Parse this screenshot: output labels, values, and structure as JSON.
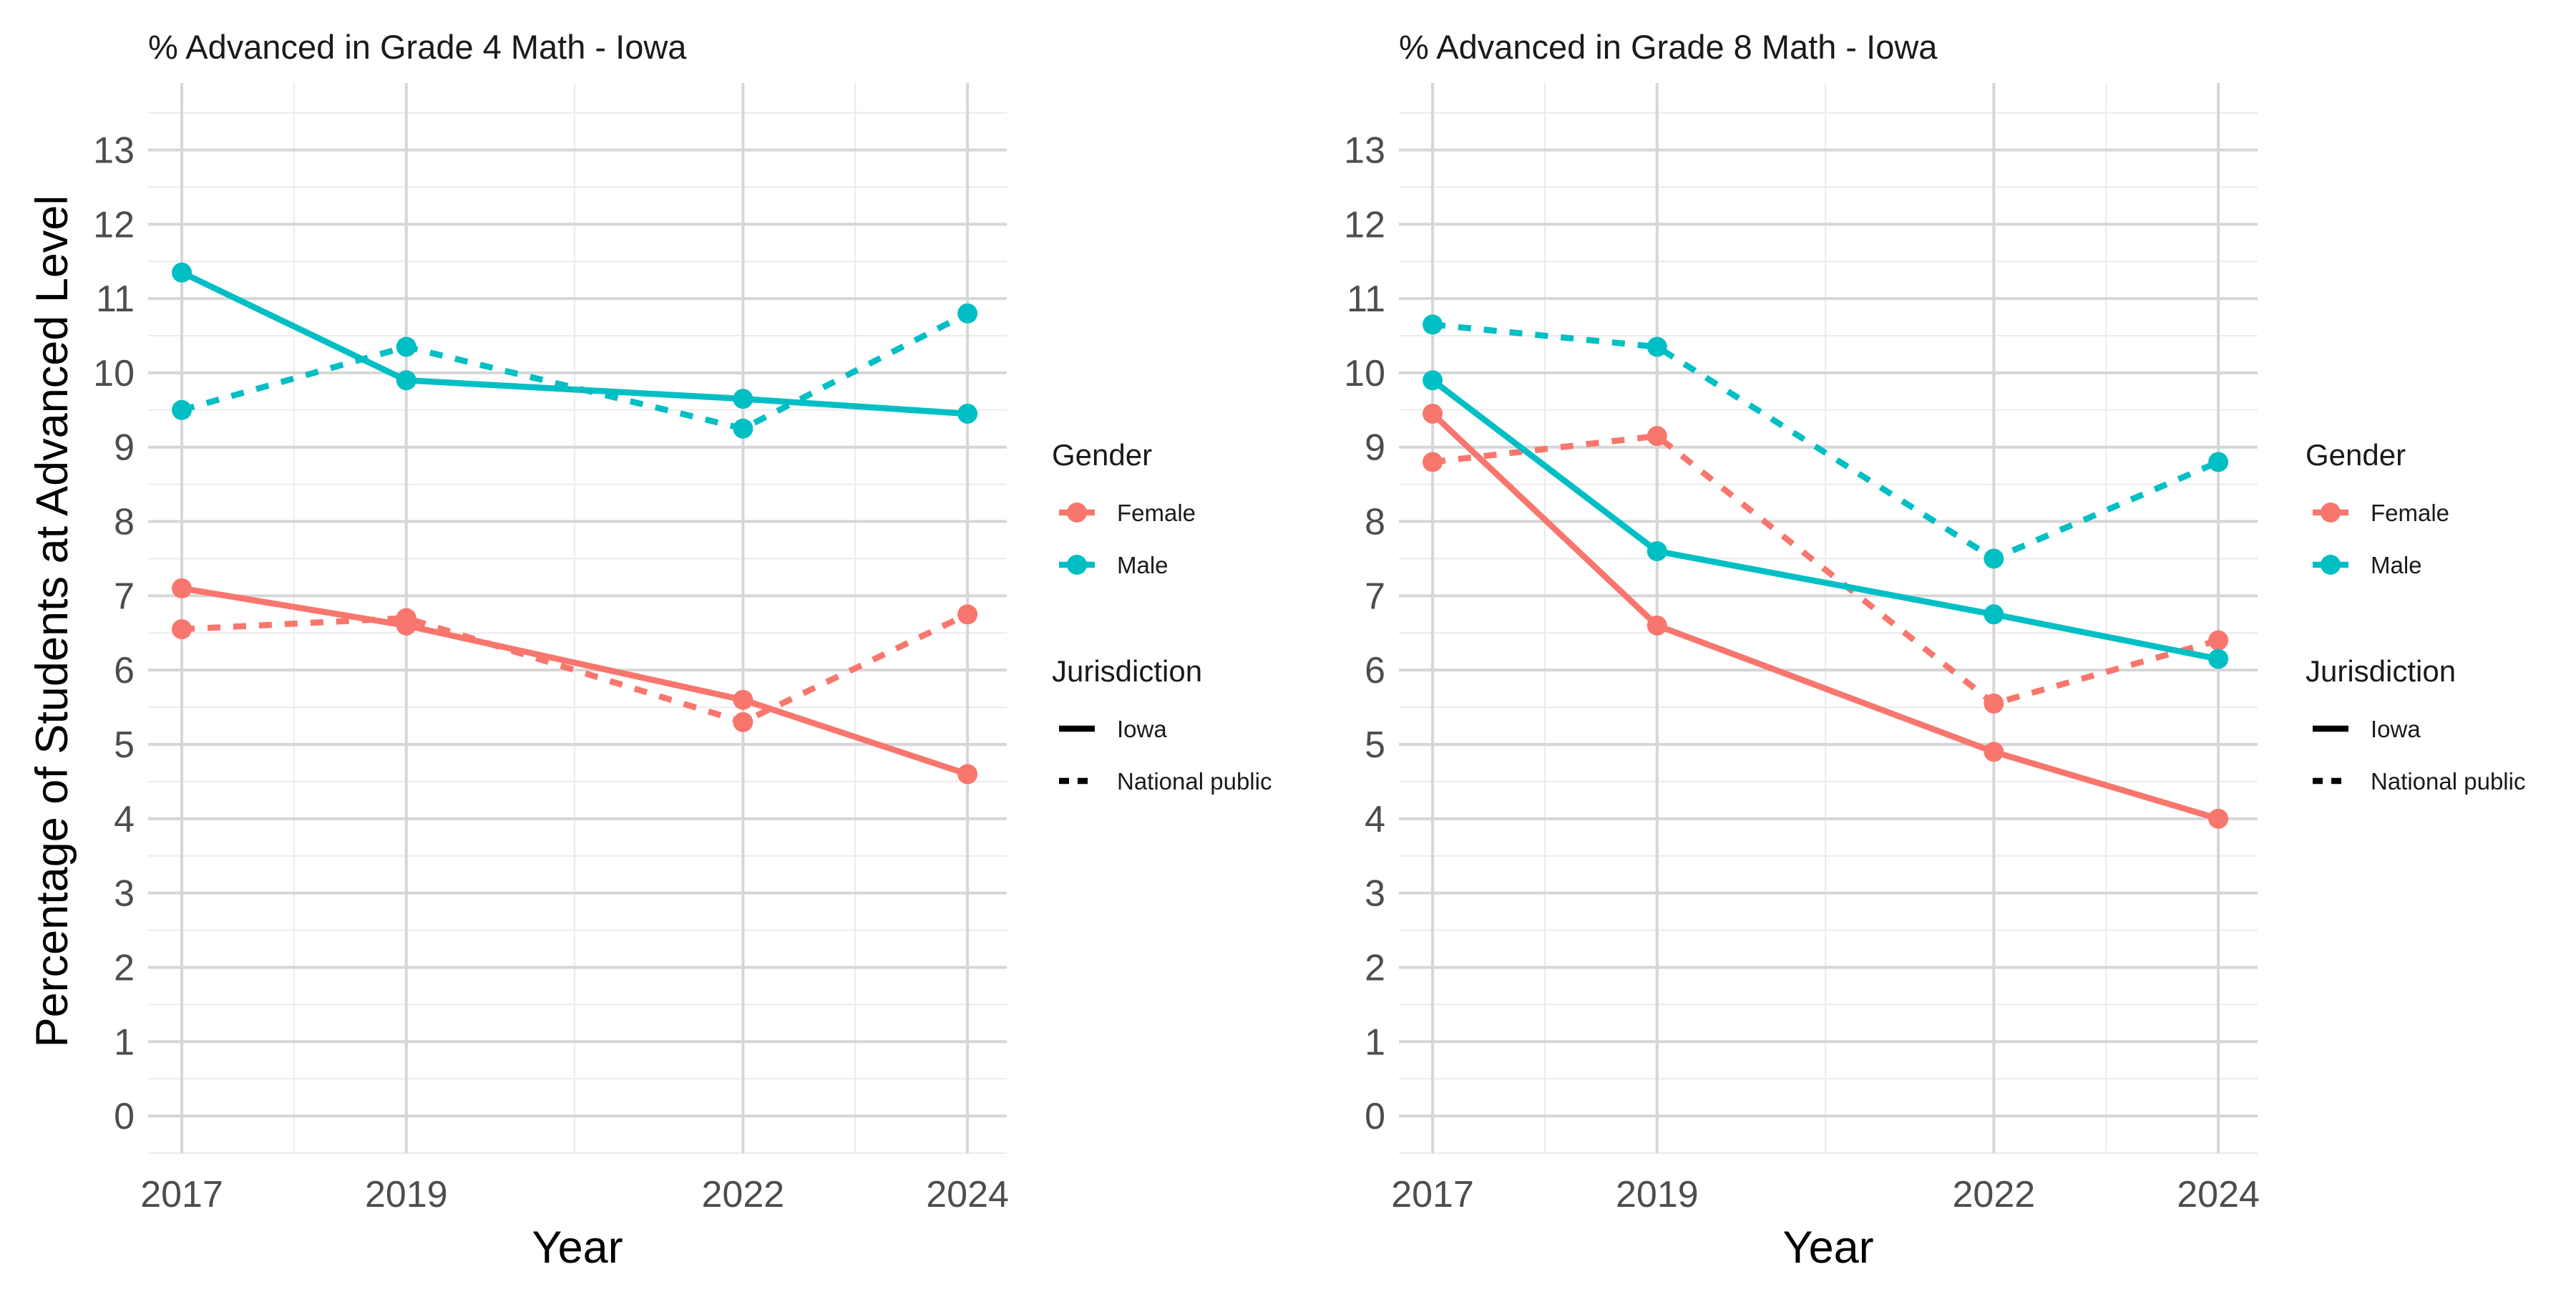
{
  "y_axis_label": "Percentage of Students at Advanced Level",
  "colors": {
    "Female": "#F8766D",
    "Male": "#00BFC4"
  },
  "chart_data": [
    {
      "type": "line",
      "title": "% Advanced in Grade 4 Math - Iowa",
      "xlabel": "Year",
      "x_ticks": [
        2017,
        2019,
        2022,
        2024
      ],
      "y_ticks": [
        0,
        1,
        2,
        3,
        4,
        5,
        6,
        7,
        8,
        9,
        10,
        11,
        12,
        13
      ],
      "ylim": [
        -0.5,
        13.9
      ],
      "xlim": [
        2016.7,
        2024.35
      ],
      "grid": true,
      "legend": {
        "position": "right",
        "gender_title": "Gender",
        "gender_items": [
          "Female",
          "Male"
        ],
        "jurisdiction_title": "Jurisdiction",
        "jurisdiction_items": [
          "Iowa",
          "National public"
        ]
      },
      "series": [
        {
          "gender": "Female",
          "jurisdiction": "Iowa",
          "x": [
            2017,
            2019,
            2022,
            2024
          ],
          "y": [
            7.1,
            6.6,
            5.6,
            4.6
          ]
        },
        {
          "gender": "Female",
          "jurisdiction": "National public",
          "x": [
            2017,
            2019,
            2022,
            2024
          ],
          "y": [
            6.55,
            6.7,
            5.3,
            6.75
          ]
        },
        {
          "gender": "Male",
          "jurisdiction": "Iowa",
          "x": [
            2017,
            2019,
            2022,
            2024
          ],
          "y": [
            11.35,
            9.9,
            9.65,
            9.45
          ]
        },
        {
          "gender": "Male",
          "jurisdiction": "National public",
          "x": [
            2017,
            2019,
            2022,
            2024
          ],
          "y": [
            9.5,
            10.35,
            9.25,
            10.8
          ]
        }
      ]
    },
    {
      "type": "line",
      "title": "% Advanced in Grade 8 Math - Iowa",
      "xlabel": "Year",
      "x_ticks": [
        2017,
        2019,
        2022,
        2024
      ],
      "y_ticks": [
        0,
        1,
        2,
        3,
        4,
        5,
        6,
        7,
        8,
        9,
        10,
        11,
        12,
        13
      ],
      "ylim": [
        -0.5,
        13.9
      ],
      "xlim": [
        2016.7,
        2024.35
      ],
      "grid": true,
      "legend": {
        "position": "right",
        "gender_title": "Gender",
        "gender_items": [
          "Female",
          "Male"
        ],
        "jurisdiction_title": "Jurisdiction",
        "jurisdiction_items": [
          "Iowa",
          "National public"
        ]
      },
      "series": [
        {
          "gender": "Female",
          "jurisdiction": "Iowa",
          "x": [
            2017,
            2019,
            2022,
            2024
          ],
          "y": [
            9.45,
            6.6,
            4.9,
            4.0
          ]
        },
        {
          "gender": "Female",
          "jurisdiction": "National public",
          "x": [
            2017,
            2019,
            2022,
            2024
          ],
          "y": [
            8.8,
            9.15,
            5.55,
            6.4
          ]
        },
        {
          "gender": "Male",
          "jurisdiction": "Iowa",
          "x": [
            2017,
            2019,
            2022,
            2024
          ],
          "y": [
            9.9,
            7.6,
            6.75,
            6.15
          ]
        },
        {
          "gender": "Male",
          "jurisdiction": "National public",
          "x": [
            2017,
            2019,
            2022,
            2024
          ],
          "y": [
            10.65,
            10.35,
            7.5,
            8.8
          ]
        }
      ]
    }
  ]
}
